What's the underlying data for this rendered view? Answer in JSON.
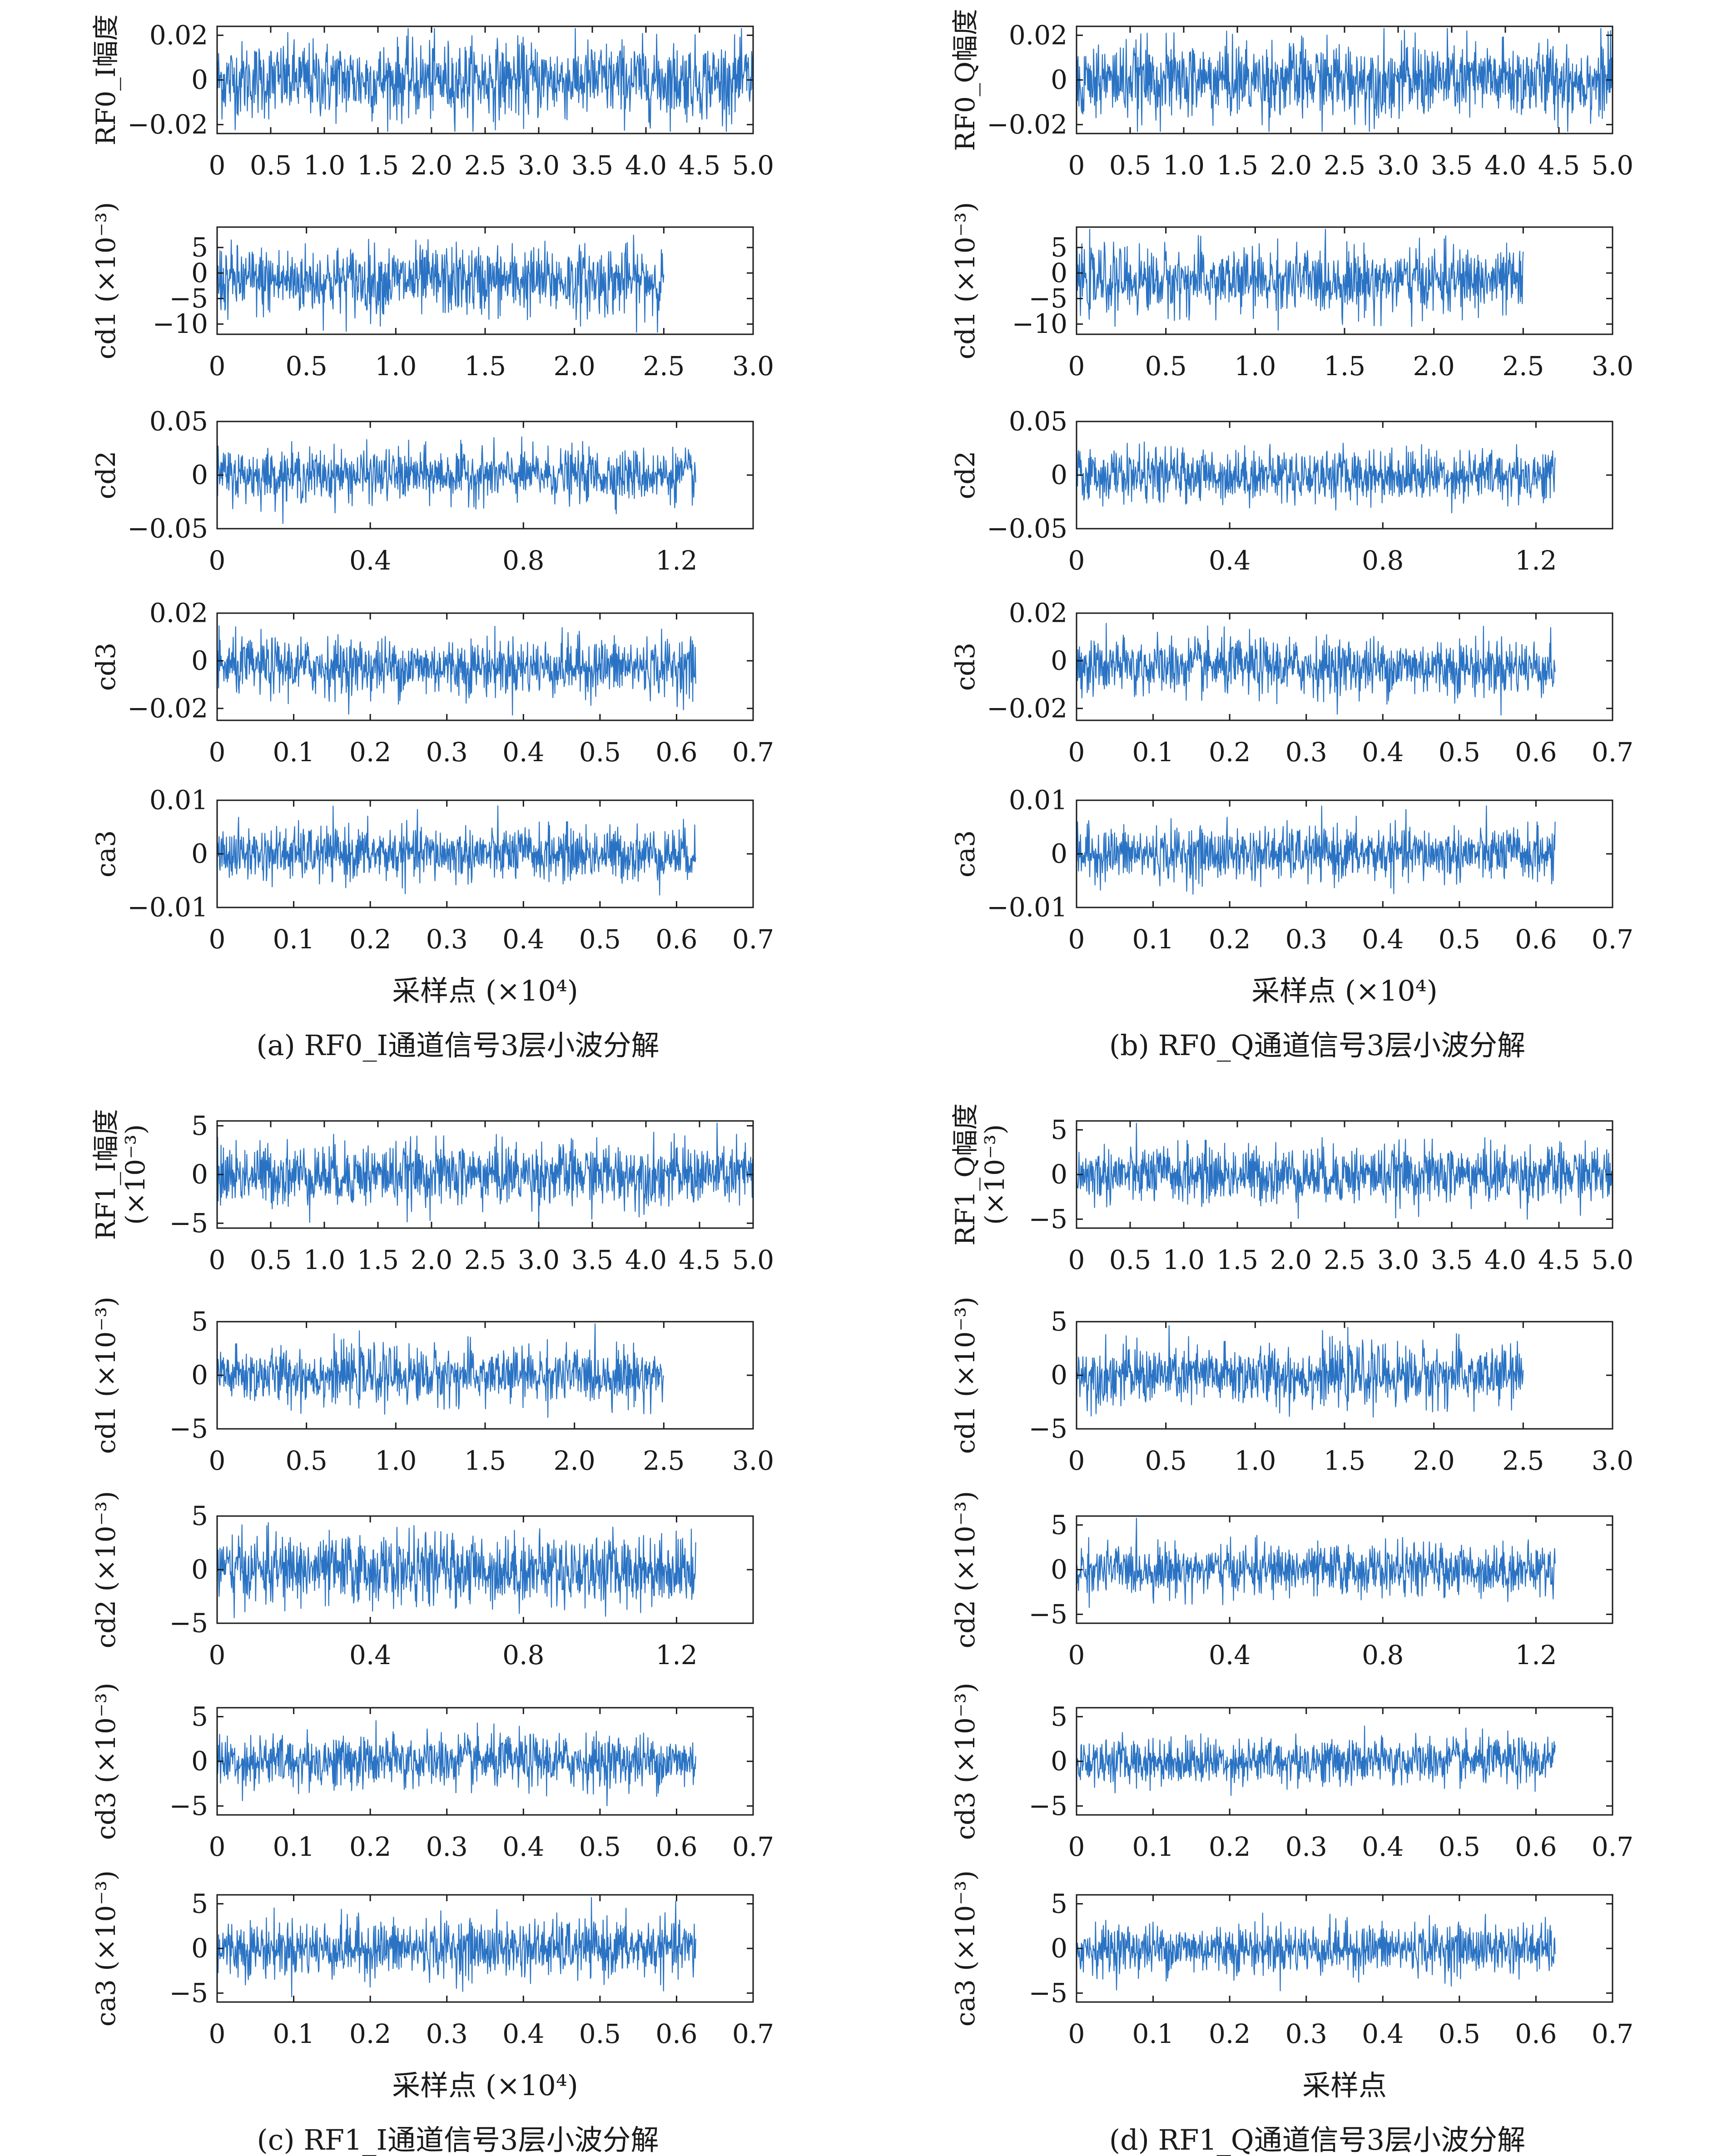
{
  "figure": {
    "style": {
      "series_color": "#2a73c4",
      "series_color_alt": "#1f8f7a",
      "axis_color": "#1a1a1a",
      "background": "#ffffff"
    }
  },
  "panels": [
    {
      "id": "a",
      "caption": "(a) RF0_I通道信号3层小波分解",
      "xlabel": "采样点 (×10⁴)",
      "subplots": [
        {
          "ylabel": "RF0_I幅度",
          "ylabel2": "",
          "yticks": [
            "0.02",
            "0",
            "−0.02"
          ],
          "xticks": [
            "0",
            "0.5",
            "1.0",
            "1.5",
            "2.0",
            "2.5",
            "3.0",
            "3.5",
            "4.0",
            "4.5",
            "5.0"
          ]
        },
        {
          "ylabel": "cd1 (×10⁻³)",
          "ylabel2": "",
          "yticks": [
            "5",
            "0",
            "−5",
            "−10"
          ],
          "xticks": [
            "0",
            "0.5",
            "1.0",
            "1.5",
            "2.0",
            "2.5",
            "3.0"
          ]
        },
        {
          "ylabel": "cd2",
          "ylabel2": "",
          "yticks": [
            "0.05",
            "0",
            "−0.05"
          ],
          "xticks": [
            "0",
            "0.4",
            "0.8",
            "1.2"
          ]
        },
        {
          "ylabel": "cd3",
          "ylabel2": "",
          "yticks": [
            "0.02",
            "0",
            "−0.02"
          ],
          "xticks": [
            "0",
            "0.1",
            "0.2",
            "0.3",
            "0.4",
            "0.5",
            "0.6",
            "0.7"
          ]
        },
        {
          "ylabel": "ca3",
          "ylabel2": "",
          "yticks": [
            "0.01",
            "0",
            "−0.01"
          ],
          "xticks": [
            "0",
            "0.1",
            "0.2",
            "0.3",
            "0.4",
            "0.5",
            "0.6",
            "0.7"
          ]
        }
      ]
    },
    {
      "id": "b",
      "caption": "(b) RF0_Q通道信号3层小波分解",
      "xlabel": "采样点 (×10⁴)",
      "subplots": [
        {
          "ylabel": "RF0_Q幅度",
          "ylabel2": "",
          "yticks": [
            "0.02",
            "0",
            "−0.02"
          ],
          "xticks": [
            "0",
            "0.5",
            "1.0",
            "1.5",
            "2.0",
            "2.5",
            "3.0",
            "3.5",
            "4.0",
            "4.5",
            "5.0"
          ]
        },
        {
          "ylabel": "cd1 (×10⁻³)",
          "ylabel2": "",
          "yticks": [
            "5",
            "0",
            "−5",
            "−10"
          ],
          "xticks": [
            "0",
            "0.5",
            "1.0",
            "1.5",
            "2.0",
            "2.5",
            "3.0"
          ]
        },
        {
          "ylabel": "cd2",
          "ylabel2": "",
          "yticks": [
            "0.05",
            "0",
            "−0.05"
          ],
          "xticks": [
            "0",
            "0.4",
            "0.8",
            "1.2"
          ]
        },
        {
          "ylabel": "cd3",
          "ylabel2": "",
          "yticks": [
            "0.02",
            "0",
            "−0.02"
          ],
          "xticks": [
            "0",
            "0.1",
            "0.2",
            "0.3",
            "0.4",
            "0.5",
            "0.6",
            "0.7"
          ]
        },
        {
          "ylabel": "ca3",
          "ylabel2": "",
          "yticks": [
            "0.01",
            "0",
            "−0.01"
          ],
          "xticks": [
            "0",
            "0.1",
            "0.2",
            "0.3",
            "0.4",
            "0.5",
            "0.6",
            "0.7"
          ]
        }
      ]
    },
    {
      "id": "c",
      "caption": "(c) RF1_I通道信号3层小波分解",
      "xlabel": "采样点 (×10⁴)",
      "subplots": [
        {
          "ylabel": "RF1_I幅度",
          "ylabel2": "(×10⁻³)",
          "yticks": [
            "5",
            "0",
            "−5"
          ],
          "xticks": [
            "0",
            "0.5",
            "1.0",
            "1.5",
            "2.0",
            "2.5",
            "3.0",
            "3.5",
            "4.0",
            "4.5",
            "5.0"
          ]
        },
        {
          "ylabel": "cd1 (×10⁻³)",
          "ylabel2": "",
          "yticks": [
            "5",
            "0",
            "−5"
          ],
          "xticks": [
            "0",
            "0.5",
            "1.0",
            "1.5",
            "2.0",
            "2.5",
            "3.0"
          ]
        },
        {
          "ylabel": "cd2 (×10⁻³)",
          "ylabel2": "",
          "yticks": [
            "5",
            "0",
            "−5"
          ],
          "xticks": [
            "0",
            "0.4",
            "0.8",
            "1.2"
          ]
        },
        {
          "ylabel": "cd3 (×10⁻³)",
          "ylabel2": "",
          "yticks": [
            "5",
            "0",
            "−5"
          ],
          "xticks": [
            "0",
            "0.1",
            "0.2",
            "0.3",
            "0.4",
            "0.5",
            "0.6",
            "0.7"
          ]
        },
        {
          "ylabel": "ca3 (×10⁻³)",
          "ylabel2": "",
          "yticks": [
            "5",
            "0",
            "−5"
          ],
          "xticks": [
            "0",
            "0.1",
            "0.2",
            "0.3",
            "0.4",
            "0.5",
            "0.6",
            "0.7"
          ]
        }
      ]
    },
    {
      "id": "d",
      "caption": "(d) RF1_Q通道信号3层小波分解",
      "xlabel": "采样点",
      "subplots": [
        {
          "ylabel": "RF1_Q幅度",
          "ylabel2": "(×10⁻³)",
          "yticks": [
            "5",
            "0",
            "−5"
          ],
          "xticks": [
            "0",
            "0.5",
            "1.0",
            "1.5",
            "2.0",
            "2.5",
            "3.0",
            "3.5",
            "4.0",
            "4.5",
            "5.0"
          ]
        },
        {
          "ylabel": "cd1 (×10⁻³)",
          "ylabel2": "",
          "yticks": [
            "5",
            "0",
            "−5"
          ],
          "xticks": [
            "0",
            "0.5",
            "1.0",
            "1.5",
            "2.0",
            "2.5",
            "3.0"
          ]
        },
        {
          "ylabel": "cd2 (×10⁻³)",
          "ylabel2": "",
          "yticks": [
            "5",
            "0",
            "−5"
          ],
          "xticks": [
            "0",
            "0.4",
            "0.8",
            "1.2"
          ]
        },
        {
          "ylabel": "cd3 (×10⁻³)",
          "ylabel2": "",
          "yticks": [
            "5",
            "0",
            "−5"
          ],
          "xticks": [
            "0",
            "0.1",
            "0.2",
            "0.3",
            "0.4",
            "0.5",
            "0.6",
            "0.7"
          ]
        },
        {
          "ylabel": "ca3 (×10⁻³)",
          "ylabel2": "",
          "yticks": [
            "5",
            "0",
            "−5"
          ],
          "xticks": [
            "0",
            "0.1",
            "0.2",
            "0.3",
            "0.4",
            "0.5",
            "0.6",
            "0.7"
          ]
        }
      ]
    }
  ],
  "chart_data": [
    {
      "panel": "a",
      "type": "line",
      "series": [
        {
          "name": "RF0_I",
          "x_range": [
            0,
            5.0
          ],
          "y_range": [
            -0.02,
            0.02
          ],
          "amplitude_std": 0.0085,
          "x_span": [
            0,
            5.0
          ],
          "xlim": [
            0,
            5.0
          ],
          "ylim": [
            -0.024,
            0.024
          ]
        },
        {
          "name": "cd1",
          "x_range": [
            0,
            2.5
          ],
          "y_range": [
            -10,
            5
          ],
          "amplitude_std": 3.4,
          "x_span": [
            0,
            2.5
          ],
          "xlim": [
            0,
            3.0
          ],
          "ylim": [
            -12,
            9
          ]
        },
        {
          "name": "cd2",
          "x_range": [
            0,
            1.25
          ],
          "y_range": [
            -0.05,
            0.05
          ],
          "amplitude_std": 0.012,
          "x_span": [
            0,
            1.25
          ],
          "xlim": [
            0,
            1.4
          ],
          "ylim": [
            -0.05,
            0.05
          ]
        },
        {
          "name": "cd3",
          "x_range": [
            0,
            0.625
          ],
          "y_range": [
            -0.02,
            0.02
          ],
          "amplitude_std": 0.006,
          "x_span": [
            0,
            0.625
          ],
          "xlim": [
            0,
            0.7
          ],
          "ylim": [
            -0.025,
            0.02
          ]
        },
        {
          "name": "ca3",
          "x_range": [
            0,
            0.625
          ],
          "y_range": [
            -0.01,
            0.01
          ],
          "amplitude_std": 0.0025,
          "x_span": [
            0,
            0.625
          ],
          "xlim": [
            0,
            0.7
          ],
          "ylim": [
            -0.01,
            0.01
          ]
        }
      ]
    },
    {
      "panel": "b",
      "type": "line",
      "series": [
        {
          "name": "RF0_Q",
          "x_range": [
            0,
            5.0
          ],
          "y_range": [
            -0.02,
            0.02
          ],
          "amplitude_std": 0.0085,
          "x_span": [
            0,
            5.0
          ],
          "xlim": [
            0,
            5.0
          ],
          "ylim": [
            -0.024,
            0.024
          ]
        },
        {
          "name": "cd1",
          "x_range": [
            0,
            2.5
          ],
          "y_range": [
            -10,
            5
          ],
          "amplitude_std": 3.2,
          "x_span": [
            0,
            2.5
          ],
          "xlim": [
            0,
            3.0
          ],
          "ylim": [
            -12,
            9
          ]
        },
        {
          "name": "cd2",
          "x_range": [
            0,
            1.25
          ],
          "y_range": [
            -0.05,
            0.05
          ],
          "amplitude_std": 0.012,
          "x_span": [
            0,
            1.25
          ],
          "xlim": [
            0,
            1.4
          ],
          "ylim": [
            -0.05,
            0.05
          ]
        },
        {
          "name": "cd3",
          "x_range": [
            0,
            0.625
          ],
          "y_range": [
            -0.02,
            0.02
          ],
          "amplitude_std": 0.006,
          "x_span": [
            0,
            0.625
          ],
          "xlim": [
            0,
            0.7
          ],
          "ylim": [
            -0.025,
            0.02
          ]
        },
        {
          "name": "ca3",
          "x_range": [
            0,
            0.625
          ],
          "y_range": [
            -0.01,
            0.01
          ],
          "amplitude_std": 0.0025,
          "x_span": [
            0,
            0.625
          ],
          "xlim": [
            0,
            0.7
          ],
          "ylim": [
            -0.01,
            0.01
          ]
        }
      ]
    },
    {
      "panel": "c",
      "type": "line",
      "series": [
        {
          "name": "RF1_I",
          "x_range": [
            0,
            5.0
          ],
          "y_range": [
            -5,
            5
          ],
          "amplitude_std": 1.6,
          "x_span": [
            0,
            5.0
          ],
          "xlim": [
            0,
            5.0
          ],
          "ylim": [
            -5.5,
            5.5
          ]
        },
        {
          "name": "cd1",
          "x_range": [
            0,
            2.5
          ],
          "y_range": [
            -5,
            5
          ],
          "amplitude_std": 1.3,
          "x_span": [
            0,
            2.5
          ],
          "xlim": [
            0,
            3.0
          ],
          "ylim": [
            -5,
            5
          ]
        },
        {
          "name": "cd2",
          "x_range": [
            0,
            1.25
          ],
          "y_range": [
            -5,
            5
          ],
          "amplitude_std": 1.6,
          "x_span": [
            0,
            1.25
          ],
          "xlim": [
            0,
            1.4
          ],
          "ylim": [
            -5,
            5
          ]
        },
        {
          "name": "cd3",
          "x_range": [
            0,
            0.625
          ],
          "y_range": [
            -5,
            5
          ],
          "amplitude_std": 1.5,
          "x_span": [
            0,
            0.625
          ],
          "xlim": [
            0,
            0.7
          ],
          "ylim": [
            -6,
            6
          ]
        },
        {
          "name": "ca3",
          "x_range": [
            0,
            0.625
          ],
          "y_range": [
            -5,
            5
          ],
          "amplitude_std": 1.6,
          "x_span": [
            0,
            0.625
          ],
          "xlim": [
            0,
            0.7
          ],
          "ylim": [
            -6,
            6
          ]
        }
      ]
    },
    {
      "panel": "d",
      "type": "line",
      "series": [
        {
          "name": "RF1_Q",
          "x_range": [
            0,
            5.0
          ],
          "y_range": [
            -5,
            5
          ],
          "amplitude_std": 1.6,
          "x_span": [
            0,
            5.0
          ],
          "xlim": [
            0,
            5.0
          ],
          "ylim": [
            -6,
            6
          ]
        },
        {
          "name": "cd1",
          "x_range": [
            0,
            2.5
          ],
          "y_range": [
            -5,
            5
          ],
          "amplitude_std": 1.4,
          "x_span": [
            0,
            2.5
          ],
          "xlim": [
            0,
            3.0
          ],
          "ylim": [
            -5,
            5
          ]
        },
        {
          "name": "cd2",
          "x_range": [
            0,
            1.25
          ],
          "y_range": [
            -5,
            5
          ],
          "amplitude_std": 1.4,
          "x_span": [
            0,
            1.25
          ],
          "xlim": [
            0,
            1.4
          ],
          "ylim": [
            -6,
            6
          ]
        },
        {
          "name": "cd3",
          "x_range": [
            0,
            0.625
          ],
          "y_range": [
            -5,
            5
          ],
          "amplitude_std": 1.3,
          "x_span": [
            0,
            0.625
          ],
          "xlim": [
            0,
            0.7
          ],
          "ylim": [
            -6,
            6
          ]
        },
        {
          "name": "ca3",
          "x_range": [
            0,
            0.625
          ],
          "y_range": [
            -5,
            5
          ],
          "amplitude_std": 1.4,
          "x_span": [
            0,
            0.625
          ],
          "xlim": [
            0,
            0.7
          ],
          "ylim": [
            -6,
            6
          ]
        }
      ]
    }
  ]
}
